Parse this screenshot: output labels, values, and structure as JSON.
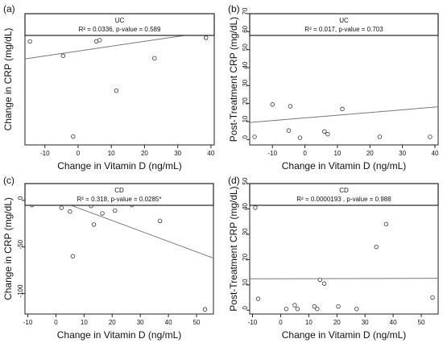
{
  "chart_data": [
    {
      "panel_label": "(a)",
      "type": "scatter",
      "strip_label": "UC",
      "annotation": "R² = 0.0336, p-value = 0.589",
      "xlabel": "Change in Vitamin D (ng/mL)",
      "ylabel": "Change in CRP (mg/dL)",
      "xlim": [
        -16,
        41
      ],
      "ylim": [
        -95,
        14
      ],
      "xticks": [
        -10,
        0,
        10,
        20,
        30,
        40
      ],
      "yticks": [],
      "points": [
        [
          -14.5,
          -9
        ],
        [
          -9.5,
          -1.5
        ],
        [
          -5.5,
          0.5
        ],
        [
          -4.5,
          -21
        ],
        [
          5.5,
          -9
        ],
        [
          6.5,
          -8
        ],
        [
          11.5,
          -50
        ],
        [
          23,
          -23
        ],
        [
          38.5,
          -6
        ],
        [
          -1.5,
          -88
        ]
      ],
      "trend": [
        [
          -16,
          -23.5
        ],
        [
          41,
          -0.5
        ]
      ]
    },
    {
      "panel_label": "(b)",
      "type": "scatter",
      "strip_label": "UC",
      "annotation": "R² = 0.017, p-value = 0.703",
      "xlabel": "Change in Vitamin D (ng/mL)",
      "ylabel": "Post-Treatment CRP (mg/dL)",
      "xlim": [
        -17,
        41
      ],
      "ylim": [
        -3,
        70
      ],
      "xticks": [
        -10,
        0,
        10,
        20,
        30,
        40
      ],
      "yticks": [
        0,
        10,
        20,
        30,
        40,
        50,
        60,
        70
      ],
      "points": [
        [
          -15.5,
          1.5
        ],
        [
          -10,
          19.5
        ],
        [
          -4.5,
          18.5
        ],
        [
          -5,
          5
        ],
        [
          -1.5,
          1
        ],
        [
          6,
          4.5
        ],
        [
          7,
          3
        ],
        [
          11.5,
          17
        ],
        [
          23,
          1.5
        ],
        [
          38.5,
          1.5
        ]
      ],
      "trend": [
        [
          -17,
          9.5
        ],
        [
          41,
          18.2
        ]
      ]
    },
    {
      "panel_label": "(c)",
      "type": "scatter",
      "strip_label": "CD",
      "annotation": "R² = 0.318, p-value = 0.0285*",
      "xlabel": "Change in Vitamin D (ng/mL)",
      "ylabel": "Change in CRP (mg/dL)",
      "xlim": [
        -11,
        56
      ],
      "ylim": [
        -122,
        18
      ],
      "xticks": [
        -10,
        0,
        10,
        20,
        30,
        40,
        50
      ],
      "yticks": [
        0,
        -50,
        -100
      ],
      "points": [
        [
          -8.5,
          -5
        ],
        [
          2,
          -8
        ],
        [
          5,
          -12
        ],
        [
          6,
          -60
        ],
        [
          12.5,
          -6
        ],
        [
          13.5,
          -26
        ],
        [
          15,
          -2
        ],
        [
          16.5,
          -14
        ],
        [
          21,
          -11
        ],
        [
          27,
          -5
        ],
        [
          34,
          -3
        ],
        [
          37,
          -22
        ],
        [
          53,
          -117
        ]
      ],
      "trend": [
        [
          -11,
          13
        ],
        [
          56,
          -62
        ]
      ]
    },
    {
      "panel_label": "(d)",
      "type": "scatter",
      "strip_label": "CD",
      "annotation": "R² = 0.0000193 , p-value = 0.988",
      "xlabel": "Change in Vitamin D (ng/mL)",
      "ylabel": "Post-Treatment CRP (mg/dL)",
      "xlim": [
        -11,
        56
      ],
      "ylim": [
        -1.5,
        50
      ],
      "xticks": [
        -10,
        0,
        10,
        20,
        30,
        40,
        50
      ],
      "yticks": [
        0,
        10,
        20,
        30,
        40,
        50
      ],
      "points": [
        [
          -9,
          40.5
        ],
        [
          -8,
          4.5
        ],
        [
          2,
          0.5
        ],
        [
          5,
          2
        ],
        [
          6,
          0.5
        ],
        [
          12,
          1.5
        ],
        [
          13,
          0.5
        ],
        [
          14,
          12
        ],
        [
          15.5,
          10.5
        ],
        [
          20.5,
          1.5
        ],
        [
          27,
          0.5
        ],
        [
          34,
          25
        ],
        [
          37.5,
          34
        ],
        [
          54,
          5
        ]
      ],
      "trend": [
        [
          -11,
          12.4
        ],
        [
          56,
          12.6
        ]
      ]
    }
  ]
}
